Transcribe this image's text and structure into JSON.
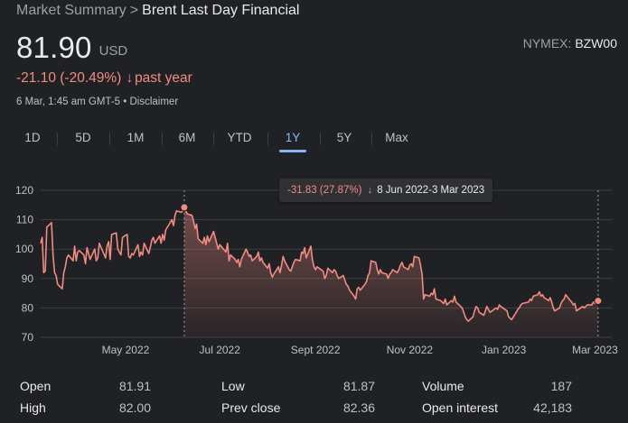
{
  "breadcrumb": {
    "parent": "Market Summary",
    "separator": ">",
    "current": "Brent Last Day Financial"
  },
  "quote": {
    "price": "81.90",
    "currency": "USD",
    "exchange_label": "NYMEX:",
    "ticker": "BZW00",
    "change": "-21.10 (-20.49%)",
    "change_arrow": "↓",
    "period": "past year",
    "timestamp": "6 Mar, 1:45 am GMT-5",
    "disclaimer_sep": "•",
    "disclaimer": "Disclaimer"
  },
  "tabs": [
    {
      "label": "1D",
      "active": false
    },
    {
      "label": "5D",
      "active": false
    },
    {
      "label": "1M",
      "active": false
    },
    {
      "label": "6M",
      "active": false
    },
    {
      "label": "YTD",
      "active": false
    },
    {
      "label": "1Y",
      "active": true
    },
    {
      "label": "5Y",
      "active": false
    },
    {
      "label": "Max",
      "active": false
    }
  ],
  "tooltip": {
    "change": "-31.83 (27.87%)",
    "arrow": "↓",
    "range": "8 Jun 2022-3 Mar 2023"
  },
  "colors": {
    "background": "#202124",
    "line": "#f28b82",
    "accent": "#8ab4f8",
    "grid": "#3c4043"
  },
  "chart_data": {
    "type": "area",
    "title": "",
    "xlabel": "",
    "ylabel": "",
    "ylim": [
      70,
      120
    ],
    "yticks": [
      70,
      80,
      90,
      100,
      110,
      120
    ],
    "xlim": [
      "2022-03-07",
      "2023-03-06"
    ],
    "xticks": [
      {
        "date": "2022-05-01",
        "label": "May 2022"
      },
      {
        "date": "2022-07-01",
        "label": "Jul 2022"
      },
      {
        "date": "2022-09-01",
        "label": "Sept 2022"
      },
      {
        "date": "2022-11-01",
        "label": "Nov 2022"
      },
      {
        "date": "2023-01-01",
        "label": "Jan 2023"
      },
      {
        "date": "2023-03-01",
        "label": "Mar 2023"
      }
    ],
    "grid": true,
    "selection": {
      "start": "2022-06-08",
      "end": "2023-03-03",
      "start_value": 114.2,
      "end_value": 82.4
    },
    "series": [
      {
        "values": [
          [
            "2022-03-07",
            102.0
          ],
          [
            "2022-03-08",
            104.0
          ],
          [
            "2022-03-09",
            92.0
          ],
          [
            "2022-03-10",
            92.5
          ],
          [
            "2022-03-11",
            107.5
          ],
          [
            "2022-03-14",
            109.0
          ],
          [
            "2022-03-15",
            98.0
          ],
          [
            "2022-03-16",
            92.0
          ],
          [
            "2022-03-17",
            91.0
          ],
          [
            "2022-03-18",
            88.0
          ],
          [
            "2022-03-21",
            86.5
          ],
          [
            "2022-03-22",
            92.0
          ],
          [
            "2022-03-23",
            94.0
          ],
          [
            "2022-03-24",
            97.0
          ],
          [
            "2022-03-25",
            98.0
          ],
          [
            "2022-03-28",
            96.0
          ],
          [
            "2022-03-29",
            101.0
          ],
          [
            "2022-03-30",
            96.0
          ],
          [
            "2022-03-31",
            99.0
          ],
          [
            "2022-04-01",
            99.5
          ],
          [
            "2022-04-04",
            98.0
          ],
          [
            "2022-04-05",
            95.0
          ],
          [
            "2022-04-06",
            100.5
          ],
          [
            "2022-04-07",
            98.5
          ],
          [
            "2022-04-08",
            96.5
          ],
          [
            "2022-04-11",
            100.0
          ],
          [
            "2022-04-12",
            96.0
          ],
          [
            "2022-04-13",
            97.0
          ],
          [
            "2022-04-14",
            102.0
          ],
          [
            "2022-04-18",
            97.0
          ],
          [
            "2022-04-19",
            101.0
          ],
          [
            "2022-04-20",
            102.5
          ],
          [
            "2022-04-21",
            96.5
          ],
          [
            "2022-04-22",
            105.0
          ],
          [
            "2022-04-25",
            105.5
          ],
          [
            "2022-04-26",
            100.0
          ],
          [
            "2022-04-27",
            99.0
          ],
          [
            "2022-04-28",
            98.0
          ],
          [
            "2022-04-29",
            104.0
          ],
          [
            "2022-05-02",
            105.0
          ],
          [
            "2022-05-03",
            97.5
          ],
          [
            "2022-05-04",
            97.0
          ],
          [
            "2022-05-05",
            98.5
          ],
          [
            "2022-05-06",
            98.0
          ],
          [
            "2022-05-09",
            101.5
          ],
          [
            "2022-05-10",
            97.5
          ],
          [
            "2022-05-11",
            99.0
          ],
          [
            "2022-05-12",
            98.0
          ],
          [
            "2022-05-13",
            102.0
          ],
          [
            "2022-05-16",
            98.5
          ],
          [
            "2022-05-17",
            100.5
          ],
          [
            "2022-05-18",
            103.0
          ],
          [
            "2022-05-19",
            104.0
          ],
          [
            "2022-05-20",
            102.0
          ],
          [
            "2022-05-23",
            104.5
          ],
          [
            "2022-05-24",
            102.0
          ],
          [
            "2022-05-25",
            105.0
          ],
          [
            "2022-05-26",
            103.0
          ],
          [
            "2022-05-27",
            106.5
          ],
          [
            "2022-05-31",
            110.0
          ],
          [
            "2022-06-01",
            108.0
          ],
          [
            "2022-06-02",
            111.5
          ],
          [
            "2022-06-03",
            113.0
          ],
          [
            "2022-06-06",
            112.5
          ],
          [
            "2022-06-07",
            113.0
          ],
          [
            "2022-06-08",
            114.2
          ],
          [
            "2022-06-09",
            113.0
          ],
          [
            "2022-06-10",
            112.0
          ],
          [
            "2022-06-13",
            111.5
          ],
          [
            "2022-06-14",
            109.5
          ],
          [
            "2022-06-15",
            107.0
          ],
          [
            "2022-06-16",
            108.5
          ],
          [
            "2022-06-17",
            103.5
          ],
          [
            "2022-06-20",
            102.0
          ],
          [
            "2022-06-21",
            104.0
          ],
          [
            "2022-06-22",
            101.5
          ],
          [
            "2022-06-23",
            104.5
          ],
          [
            "2022-06-24",
            102.5
          ],
          [
            "2022-06-27",
            106.0
          ],
          [
            "2022-06-28",
            104.0
          ],
          [
            "2022-06-29",
            102.0
          ],
          [
            "2022-06-30",
            100.0
          ],
          [
            "2022-07-01",
            101.5
          ],
          [
            "2022-07-05",
            99.0
          ],
          [
            "2022-07-06",
            102.0
          ],
          [
            "2022-07-07",
            96.0
          ],
          [
            "2022-07-08",
            98.0
          ],
          [
            "2022-07-11",
            96.5
          ],
          [
            "2022-07-12",
            95.5
          ],
          [
            "2022-07-13",
            96.5
          ],
          [
            "2022-07-14",
            94.0
          ],
          [
            "2022-07-15",
            96.5
          ],
          [
            "2022-07-18",
            100.0
          ],
          [
            "2022-07-19",
            99.0
          ],
          [
            "2022-07-20",
            97.5
          ],
          [
            "2022-07-21",
            98.0
          ],
          [
            "2022-07-22",
            96.0
          ],
          [
            "2022-07-25",
            97.5
          ],
          [
            "2022-07-26",
            99.0
          ],
          [
            "2022-07-27",
            96.0
          ],
          [
            "2022-07-28",
            97.0
          ],
          [
            "2022-07-29",
            95.5
          ],
          [
            "2022-08-01",
            93.5
          ],
          [
            "2022-08-02",
            95.0
          ],
          [
            "2022-08-03",
            92.0
          ],
          [
            "2022-08-04",
            90.5
          ],
          [
            "2022-08-05",
            91.5
          ],
          [
            "2022-08-08",
            94.0
          ],
          [
            "2022-08-09",
            92.0
          ],
          [
            "2022-08-10",
            94.5
          ],
          [
            "2022-08-11",
            97.5
          ],
          [
            "2022-08-12",
            96.0
          ],
          [
            "2022-08-15",
            93.0
          ],
          [
            "2022-08-16",
            92.5
          ],
          [
            "2022-08-17",
            94.0
          ],
          [
            "2022-08-18",
            95.5
          ],
          [
            "2022-08-19",
            96.5
          ],
          [
            "2022-08-22",
            96.0
          ],
          [
            "2022-08-23",
            99.0
          ],
          [
            "2022-08-24",
            98.5
          ],
          [
            "2022-08-25",
            100.5
          ],
          [
            "2022-08-26",
            97.0
          ],
          [
            "2022-08-29",
            101.0
          ],
          [
            "2022-08-30",
            96.5
          ],
          [
            "2022-08-31",
            94.0
          ],
          [
            "2022-09-01",
            93.0
          ],
          [
            "2022-09-02",
            94.0
          ],
          [
            "2022-09-06",
            92.5
          ],
          [
            "2022-09-07",
            90.0
          ],
          [
            "2022-09-08",
            91.0
          ],
          [
            "2022-09-09",
            93.5
          ],
          [
            "2022-09-12",
            92.0
          ],
          [
            "2022-09-13",
            93.0
          ],
          [
            "2022-09-14",
            92.5
          ],
          [
            "2022-09-15",
            91.0
          ],
          [
            "2022-09-16",
            90.0
          ],
          [
            "2022-09-19",
            91.0
          ],
          [
            "2022-09-20",
            89.5
          ],
          [
            "2022-09-21",
            88.0
          ],
          [
            "2022-09-22",
            87.5
          ],
          [
            "2022-09-23",
            86.0
          ],
          [
            "2022-09-26",
            84.0
          ],
          [
            "2022-09-27",
            83.0
          ],
          [
            "2022-09-28",
            86.5
          ],
          [
            "2022-09-29",
            87.0
          ],
          [
            "2022-09-30",
            86.0
          ],
          [
            "2022-10-03",
            88.0
          ],
          [
            "2022-10-04",
            89.0
          ],
          [
            "2022-10-05",
            91.0
          ],
          [
            "2022-10-06",
            92.0
          ],
          [
            "2022-10-07",
            96.0
          ],
          [
            "2022-10-10",
            95.5
          ],
          [
            "2022-10-11",
            93.0
          ],
          [
            "2022-10-12",
            91.5
          ],
          [
            "2022-10-13",
            93.0
          ],
          [
            "2022-10-14",
            92.0
          ],
          [
            "2022-10-17",
            91.5
          ],
          [
            "2022-10-18",
            90.0
          ],
          [
            "2022-10-19",
            91.5
          ],
          [
            "2022-10-20",
            92.0
          ],
          [
            "2022-10-21",
            93.0
          ],
          [
            "2022-10-24",
            92.0
          ],
          [
            "2022-10-25",
            93.0
          ],
          [
            "2022-10-26",
            94.5
          ],
          [
            "2022-10-27",
            95.5
          ],
          [
            "2022-10-28",
            94.0
          ],
          [
            "2022-10-31",
            93.0
          ],
          [
            "2022-11-01",
            94.5
          ],
          [
            "2022-11-02",
            95.0
          ],
          [
            "2022-11-03",
            94.0
          ],
          [
            "2022-11-04",
            97.5
          ],
          [
            "2022-11-07",
            97.0
          ],
          [
            "2022-11-08",
            94.5
          ],
          [
            "2022-11-09",
            91.5
          ],
          [
            "2022-11-10",
            83.0
          ],
          [
            "2022-11-11",
            84.5
          ],
          [
            "2022-11-14",
            84.0
          ],
          [
            "2022-11-15",
            85.0
          ],
          [
            "2022-11-16",
            84.5
          ],
          [
            "2022-11-17",
            86.5
          ],
          [
            "2022-11-18",
            83.0
          ],
          [
            "2022-11-21",
            82.5
          ],
          [
            "2022-11-22",
            82.0
          ],
          [
            "2022-11-23",
            81.5
          ],
          [
            "2022-11-24",
            83.0
          ],
          [
            "2022-11-25",
            81.0
          ],
          [
            "2022-11-28",
            82.5
          ],
          [
            "2022-11-29",
            82.0
          ],
          [
            "2022-11-30",
            84.0
          ],
          [
            "2022-12-01",
            82.0
          ],
          [
            "2022-12-02",
            81.5
          ],
          [
            "2022-12-05",
            80.0
          ],
          [
            "2022-12-06",
            78.5
          ],
          [
            "2022-12-07",
            77.0
          ],
          [
            "2022-12-08",
            76.0
          ],
          [
            "2022-12-09",
            75.5
          ],
          [
            "2022-12-12",
            77.0
          ],
          [
            "2022-12-13",
            79.0
          ],
          [
            "2022-12-14",
            80.5
          ],
          [
            "2022-12-15",
            80.0
          ],
          [
            "2022-12-16",
            78.5
          ],
          [
            "2022-12-19",
            77.5
          ],
          [
            "2022-12-20",
            79.0
          ],
          [
            "2022-12-21",
            80.5
          ],
          [
            "2022-12-22",
            79.5
          ],
          [
            "2022-12-23",
            78.5
          ],
          [
            "2022-12-27",
            80.0
          ],
          [
            "2022-12-28",
            79.5
          ],
          [
            "2022-12-29",
            81.0
          ],
          [
            "2022-12-30",
            80.5
          ],
          [
            "2023-01-03",
            79.0
          ],
          [
            "2023-01-04",
            77.0
          ],
          [
            "2023-01-05",
            76.5
          ],
          [
            "2023-01-06",
            76.0
          ],
          [
            "2023-01-09",
            78.5
          ],
          [
            "2023-01-10",
            79.5
          ],
          [
            "2023-01-11",
            80.0
          ],
          [
            "2023-01-12",
            81.0
          ],
          [
            "2023-01-13",
            81.5
          ],
          [
            "2023-01-17",
            82.0
          ],
          [
            "2023-01-18",
            83.0
          ],
          [
            "2023-01-19",
            82.5
          ],
          [
            "2023-01-20",
            84.0
          ],
          [
            "2023-01-23",
            84.5
          ],
          [
            "2023-01-24",
            85.5
          ],
          [
            "2023-01-25",
            84.0
          ],
          [
            "2023-01-26",
            84.5
          ],
          [
            "2023-01-27",
            83.5
          ],
          [
            "2023-01-30",
            82.5
          ],
          [
            "2023-01-31",
            83.5
          ],
          [
            "2023-02-01",
            82.0
          ],
          [
            "2023-02-02",
            80.0
          ],
          [
            "2023-02-03",
            79.0
          ],
          [
            "2023-02-06",
            80.0
          ],
          [
            "2023-02-07",
            81.5
          ],
          [
            "2023-02-08",
            82.5
          ],
          [
            "2023-02-09",
            83.0
          ],
          [
            "2023-02-10",
            84.5
          ],
          [
            "2023-02-13",
            82.5
          ],
          [
            "2023-02-14",
            82.0
          ],
          [
            "2023-02-15",
            81.0
          ],
          [
            "2023-02-16",
            81.5
          ],
          [
            "2023-02-17",
            79.0
          ],
          [
            "2023-02-21",
            80.5
          ],
          [
            "2023-02-22",
            80.0
          ],
          [
            "2023-02-23",
            80.5
          ],
          [
            "2023-02-24",
            81.0
          ],
          [
            "2023-02-27",
            81.0
          ],
          [
            "2023-02-28",
            82.0
          ],
          [
            "2023-03-01",
            81.5
          ],
          [
            "2023-03-02",
            82.0
          ],
          [
            "2023-03-03",
            82.4
          ]
        ]
      }
    ]
  },
  "stats": {
    "open_label": "Open",
    "open_value": "81.91",
    "high_label": "High",
    "high_value": "82.00",
    "low_label": "Low",
    "low_value": "81.87",
    "prev_close_label": "Prev close",
    "prev_close_value": "82.36",
    "volume_label": "Volume",
    "volume_value": "187",
    "open_interest_label": "Open interest",
    "open_interest_value": "42,183"
  }
}
